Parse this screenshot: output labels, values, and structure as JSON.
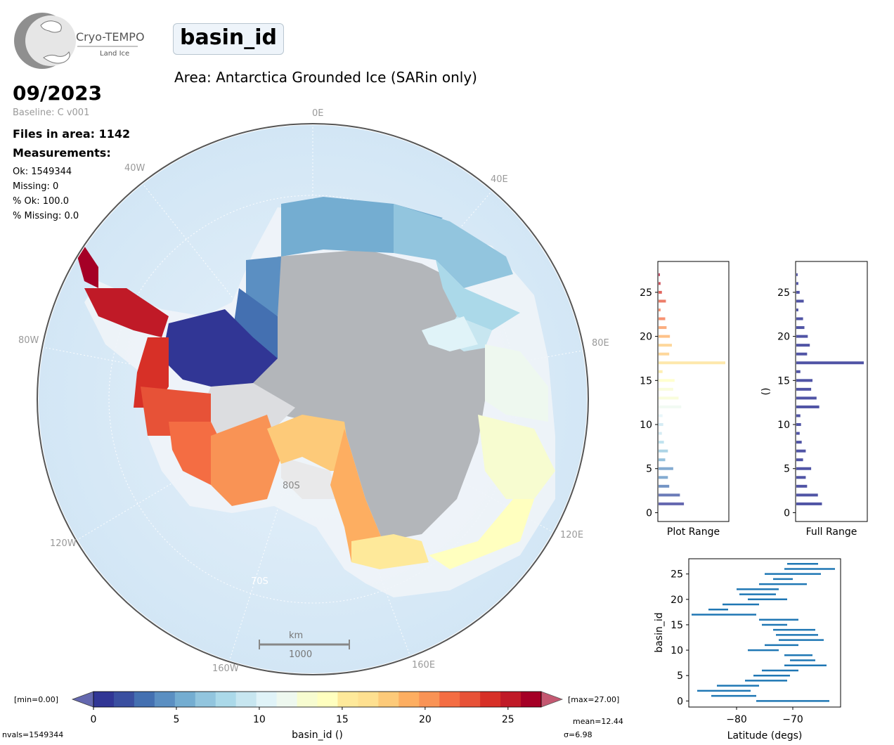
{
  "logo": {
    "name": "Cryo-TEMPO",
    "sub": "Land Ice"
  },
  "parameter": "basin_id",
  "area_title": "Area: Antarctica Grounded Ice (SARin only)",
  "date": "09/2023",
  "baseline": "Baseline: C v001",
  "files": "Files in area: 1142",
  "measurements_label": "Measurements:",
  "stats": [
    "Ok: 1549344",
    "Missing: 0",
    "% Ok: 100.0",
    "% Missing: 0.0"
  ],
  "map": {
    "lon_labels": [
      "0E",
      "40E",
      "80E",
      "120E",
      "160E",
      "160W",
      "120W",
      "80W",
      "40W"
    ],
    "lat_labels": [
      "80S",
      "70S"
    ],
    "scale_unit": "km",
    "scale_value": "1000"
  },
  "colorbar": {
    "min_label": "[min=0.00]",
    "max_label": "[max=27.00]",
    "ticks": [
      "0",
      "5",
      "10",
      "15",
      "20",
      "25"
    ],
    "label": "basin_id ()",
    "nvals": "nvals=1549344",
    "mean": "mean=12.44",
    "sigma": "σ=6.98",
    "colors": [
      "#313695",
      "#3a4fa0",
      "#4470b1",
      "#5b8fc2",
      "#74add1",
      "#92c5de",
      "#abd9e9",
      "#c7e6f0",
      "#e0f3f8",
      "#eef8ef",
      "#f7fcd0",
      "#ffffbf",
      "#fee99a",
      "#fee090",
      "#fdca79",
      "#fdae61",
      "#f99355",
      "#f46d43",
      "#e75237",
      "#d73027",
      "#c01a27",
      "#a50026"
    ]
  },
  "chart_data": [
    {
      "type": "bar",
      "orientation": "horizontal",
      "title": "",
      "xlabel": "Plot Range",
      "ylabel": "",
      "yticks": [
        "0",
        "5",
        "10",
        "15",
        "20",
        "25"
      ],
      "ylim": [
        -1,
        28.5
      ],
      "categories": [
        1,
        2,
        3,
        4,
        5,
        6,
        7,
        8,
        9,
        10,
        11,
        12,
        13,
        14,
        15,
        16,
        17,
        18,
        19,
        20,
        21,
        22,
        23,
        24,
        25,
        26,
        27
      ],
      "values": [
        0.38,
        0.32,
        0.16,
        0.14,
        0.22,
        0.1,
        0.14,
        0.08,
        0.05,
        0.07,
        0.06,
        0.34,
        0.3,
        0.22,
        0.24,
        0.06,
        1.0,
        0.16,
        0.2,
        0.17,
        0.12,
        0.1,
        0.03,
        0.11,
        0.05,
        0.03,
        0.02
      ]
    },
    {
      "type": "bar",
      "orientation": "horizontal",
      "title": "",
      "xlabel": "Full Range",
      "ylabel": "()",
      "yticks": [
        "0",
        "5",
        "10",
        "15",
        "20",
        "25"
      ],
      "ylim": [
        -1,
        28.5
      ],
      "categories": [
        1,
        2,
        3,
        4,
        5,
        6,
        7,
        8,
        9,
        10,
        11,
        12,
        13,
        14,
        15,
        16,
        17,
        18,
        19,
        20,
        21,
        22,
        23,
        24,
        25,
        26,
        27
      ],
      "values": [
        0.38,
        0.32,
        0.16,
        0.14,
        0.22,
        0.1,
        0.14,
        0.08,
        0.05,
        0.07,
        0.06,
        0.34,
        0.3,
        0.22,
        0.24,
        0.06,
        1.0,
        0.16,
        0.2,
        0.17,
        0.12,
        0.1,
        0.03,
        0.11,
        0.05,
        0.03,
        0.02
      ]
    },
    {
      "type": "scatter",
      "title": "",
      "xlabel": "Latitude (degs)",
      "ylabel": "basin_id",
      "xticks": [
        "−80",
        "−70"
      ],
      "yticks": [
        "0",
        "5",
        "10",
        "15",
        "20",
        "25"
      ],
      "xlim": [
        -88.5,
        -61.5
      ],
      "ylim": [
        -1.2,
        28.0
      ],
      "ranges": [
        {
          "y": 0,
          "x": [
            -76.5,
            -63.5
          ]
        },
        {
          "y": 1,
          "x": [
            -84.5,
            -76.5
          ]
        },
        {
          "y": 2,
          "x": [
            -87,
            -77.5
          ]
        },
        {
          "y": 3,
          "x": [
            -83.5,
            -76
          ]
        },
        {
          "y": 4,
          "x": [
            -78.5,
            -71
          ]
        },
        {
          "y": 5,
          "x": [
            -77,
            -70.5
          ]
        },
        {
          "y": 6,
          "x": [
            -75.5,
            -69
          ]
        },
        {
          "y": 7,
          "x": [
            -71.5,
            -64
          ]
        },
        {
          "y": 8,
          "x": [
            -70.5,
            -66
          ]
        },
        {
          "y": 9,
          "x": [
            -71.5,
            -66.5
          ]
        },
        {
          "y": 10,
          "x": [
            -78,
            -72.5
          ]
        },
        {
          "y": 11,
          "x": [
            -75,
            -69
          ]
        },
        {
          "y": 12,
          "x": [
            -72.5,
            -64.5
          ]
        },
        {
          "y": 13,
          "x": [
            -73,
            -65.5
          ]
        },
        {
          "y": 14,
          "x": [
            -73.5,
            -66
          ]
        },
        {
          "y": 15,
          "x": [
            -75.5,
            -71
          ]
        },
        {
          "y": 16,
          "x": [
            -76,
            -69
          ]
        },
        {
          "y": 17,
          "x": [
            -88,
            -76.5
          ]
        },
        {
          "y": 18,
          "x": [
            -85,
            -81.5
          ]
        },
        {
          "y": 19,
          "x": [
            -82.5,
            -76
          ]
        },
        {
          "y": 20,
          "x": [
            -78,
            -71
          ]
        },
        {
          "y": 21,
          "x": [
            -79.5,
            -73
          ]
        },
        {
          "y": 22,
          "x": [
            -80,
            -72.5
          ]
        },
        {
          "y": 23,
          "x": [
            -76,
            -67.5
          ]
        },
        {
          "y": 24,
          "x": [
            -73.5,
            -70
          ]
        },
        {
          "y": 25,
          "x": [
            -75,
            -65
          ]
        },
        {
          "y": 26,
          "x": [
            -71.5,
            -62.5
          ]
        },
        {
          "y": 27,
          "x": [
            -71,
            -65.5
          ]
        }
      ]
    }
  ]
}
